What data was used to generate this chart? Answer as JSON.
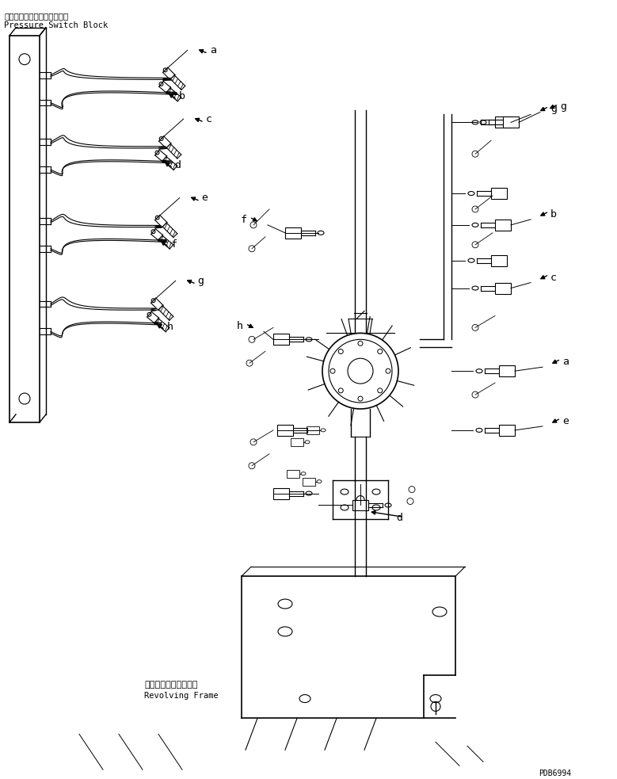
{
  "bg": "#ffffff",
  "lc": "#000000",
  "top_jp": "プレッシャスイッチブロック",
  "top_en": "Pressure Switch Block",
  "bot_jp": "レボルビングフレーム",
  "bot_en": "Revolving Frame",
  "part_no": "PDB6994",
  "fig_w": 7.79,
  "fig_h": 9.83,
  "dpi": 100
}
